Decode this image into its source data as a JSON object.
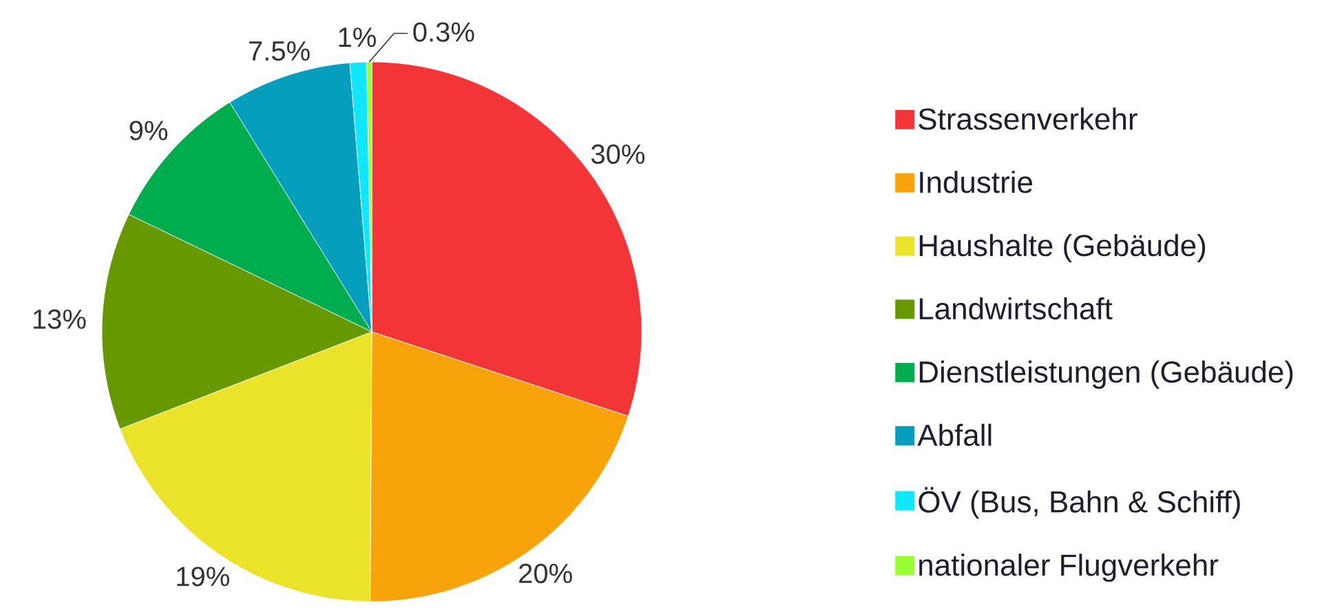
{
  "chart_data": {
    "type": "pie",
    "categories": [
      "Strassenverkehr",
      "Industrie",
      "Haushalte (Gebäude)",
      "Landwirtschaft",
      "Dienstleistungen (Gebäude)",
      "Abfall",
      "ÖV (Bus, Bahn & Schiff)",
      "nationaler Flugverkehr"
    ],
    "values": [
      30,
      20,
      19,
      13,
      9,
      7.5,
      1,
      0.3
    ],
    "colors": [
      "#f33537",
      "#f9a30a",
      "#ebe22a",
      "#669900",
      "#00ad4e",
      "#059ebd",
      "#10e6fc",
      "#99ff33"
    ],
    "value_labels": [
      "30%",
      "20%",
      "19%",
      "13%",
      "9%",
      "7.5%",
      "1%",
      "0.3%"
    ],
    "legend": "right"
  }
}
